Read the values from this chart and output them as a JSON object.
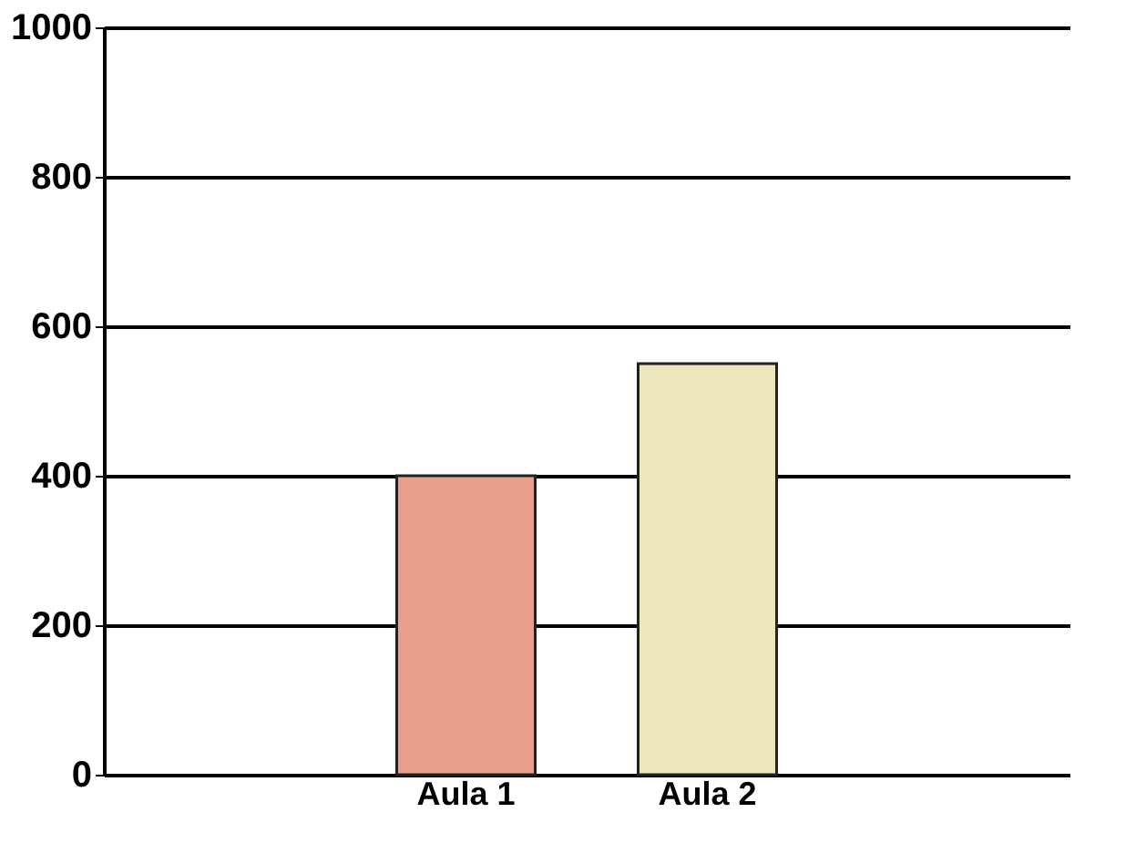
{
  "chart_data": {
    "type": "bar",
    "categories": [
      "Aula 1",
      "Aula 2"
    ],
    "values": [
      400,
      550
    ],
    "colors": [
      "#e8a08c",
      "#ece6bc"
    ],
    "ylim": [
      0,
      1000
    ],
    "yticks": [
      0,
      200,
      400,
      600,
      800,
      1000
    ],
    "grid": "y"
  }
}
